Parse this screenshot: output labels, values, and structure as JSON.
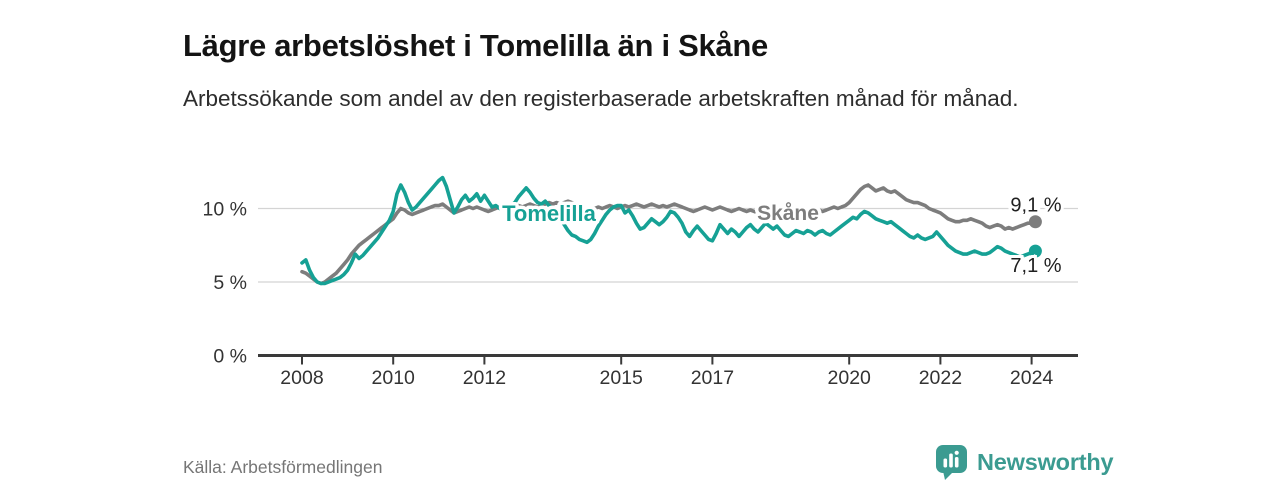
{
  "header": {
    "title": "Lägre arbetslöshet i Tomelilla än i Skåne",
    "subtitle": "Arbetssökande som andel av den registerbaserade arbetskraften månad för månad."
  },
  "chart_data": {
    "type": "line",
    "title": "Lägre arbetslöshet i Tomelilla än i Skåne",
    "unit": "%",
    "frequency": "monthly",
    "period_start": "2008-01",
    "period_end": "2024-02",
    "grid": "horizontal-only",
    "legend_position": "inline-labels-on-lines",
    "y_axis": {
      "tick_values": [
        0,
        5,
        10
      ],
      "tick_labels": [
        "0 %",
        "5 %",
        "10 %"
      ],
      "range": [
        0,
        13
      ]
    },
    "x_axis": {
      "tick_years": [
        2008,
        2010,
        2012,
        2015,
        2017,
        2020,
        2022,
        2024
      ],
      "tick_labels": [
        "2008",
        "2010",
        "2012",
        "2015",
        "2017",
        "2020",
        "2022",
        "2024"
      ]
    },
    "series": [
      {
        "name": "Skåne",
        "color": "#7d7d7d",
        "end_label": "9,1 %",
        "last_value": 9.1,
        "values": [
          5.7,
          5.6,
          5.4,
          5.2,
          5.0,
          4.9,
          5.0,
          5.2,
          5.4,
          5.6,
          5.9,
          6.2,
          6.5,
          6.9,
          7.2,
          7.5,
          7.7,
          7.9,
          8.1,
          8.3,
          8.5,
          8.7,
          8.9,
          9.1,
          9.3,
          9.7,
          10.0,
          9.9,
          9.7,
          9.6,
          9.7,
          9.8,
          9.9,
          10.0,
          10.1,
          10.2,
          10.2,
          10.3,
          10.1,
          9.9,
          9.7,
          9.8,
          9.9,
          10.0,
          10.1,
          10.0,
          10.1,
          10.0,
          9.9,
          9.8,
          9.9,
          10.0,
          10.1,
          10.0,
          9.9,
          10.0,
          10.1,
          10.2,
          10.1,
          10.2,
          10.3,
          10.2,
          10.1,
          10.2,
          10.3,
          10.4,
          10.3,
          10.4,
          10.3,
          10.4,
          10.5,
          10.4,
          10.3,
          10.1,
          9.9,
          9.8,
          9.9,
          10.0,
          10.1,
          10.0,
          10.1,
          10.2,
          10.1,
          10.0,
          10.1,
          10.2,
          10.1,
          10.2,
          10.3,
          10.2,
          10.1,
          10.2,
          10.3,
          10.2,
          10.1,
          10.2,
          10.1,
          10.2,
          10.3,
          10.2,
          10.1,
          10.0,
          9.9,
          9.8,
          9.9,
          10.0,
          10.1,
          10.0,
          9.9,
          10.0,
          10.1,
          10.0,
          9.9,
          9.8,
          9.9,
          10.0,
          9.9,
          9.8,
          9.9,
          9.8,
          9.7,
          9.8,
          9.9,
          9.8,
          9.7,
          9.6,
          9.7,
          9.8,
          9.9,
          10.0,
          10.1,
          10.0,
          9.9,
          9.8,
          9.9,
          10.0,
          9.9,
          9.8,
          9.9,
          10.0,
          10.1,
          10.0,
          10.1,
          10.2,
          10.4,
          10.7,
          11.0,
          11.3,
          11.5,
          11.6,
          11.4,
          11.2,
          11.3,
          11.4,
          11.2,
          11.1,
          11.2,
          11.0,
          10.8,
          10.6,
          10.5,
          10.4,
          10.4,
          10.3,
          10.2,
          10.0,
          9.9,
          9.8,
          9.7,
          9.5,
          9.3,
          9.2,
          9.1,
          9.1,
          9.2,
          9.2,
          9.3,
          9.2,
          9.1,
          9.0,
          8.8,
          8.7,
          8.8,
          8.9,
          8.8,
          8.6,
          8.7,
          8.6,
          8.7,
          8.8,
          8.9,
          9.0,
          9.0,
          9.1
        ]
      },
      {
        "name": "Tomelilla",
        "color": "#16a195",
        "end_label": "7,1 %",
        "last_value": 7.1,
        "values": [
          6.3,
          6.5,
          5.8,
          5.3,
          5.0,
          4.9,
          4.9,
          5.0,
          5.1,
          5.2,
          5.3,
          5.5,
          5.8,
          6.3,
          6.9,
          6.6,
          6.8,
          7.1,
          7.4,
          7.7,
          8.0,
          8.4,
          8.8,
          9.2,
          9.8,
          11.0,
          11.6,
          11.1,
          10.4,
          9.9,
          10.1,
          10.4,
          10.7,
          11.0,
          11.3,
          11.6,
          11.9,
          12.1,
          11.5,
          10.6,
          9.7,
          10.1,
          10.6,
          10.9,
          10.5,
          10.7,
          11.0,
          10.5,
          10.9,
          10.5,
          10.1,
          10.2,
          10.0,
          10.1,
          10.3,
          10.2,
          10.4,
          10.8,
          11.1,
          11.4,
          11.1,
          10.7,
          10.4,
          10.3,
          10.5,
          10.2,
          10.0,
          9.7,
          9.3,
          8.9,
          8.5,
          8.2,
          8.1,
          7.9,
          7.8,
          7.7,
          7.9,
          8.3,
          8.8,
          9.2,
          9.6,
          9.9,
          10.1,
          10.2,
          10.2,
          9.7,
          9.9,
          9.5,
          9.0,
          8.6,
          8.7,
          9.0,
          9.3,
          9.1,
          8.9,
          9.1,
          9.4,
          9.8,
          9.7,
          9.4,
          9.0,
          8.4,
          8.1,
          8.5,
          8.8,
          8.5,
          8.2,
          7.9,
          7.8,
          8.3,
          8.9,
          8.6,
          8.3,
          8.6,
          8.4,
          8.1,
          8.4,
          8.7,
          8.9,
          8.6,
          8.4,
          8.7,
          9.0,
          8.8,
          8.6,
          8.8,
          8.5,
          8.2,
          8.1,
          8.3,
          8.5,
          8.4,
          8.3,
          8.5,
          8.4,
          8.2,
          8.4,
          8.5,
          8.3,
          8.2,
          8.4,
          8.6,
          8.8,
          9.0,
          9.2,
          9.4,
          9.3,
          9.6,
          9.8,
          9.7,
          9.5,
          9.3,
          9.2,
          9.1,
          9.0,
          9.1,
          8.9,
          8.7,
          8.5,
          8.3,
          8.1,
          8.0,
          8.2,
          8.0,
          7.9,
          8.0,
          8.1,
          8.4,
          8.1,
          7.8,
          7.5,
          7.3,
          7.1,
          7.0,
          6.9,
          6.9,
          7.0,
          7.1,
          7.0,
          6.9,
          6.9,
          7.0,
          7.2,
          7.4,
          7.3,
          7.1,
          7.0,
          6.9,
          6.8,
          6.7,
          6.8,
          6.9,
          7.0,
          7.1
        ]
      }
    ],
    "colors": {
      "grid": "#d4d4d4",
      "axis": "#3a3a3a",
      "tick_text": "#333333",
      "value_label_text": "#1f1f1f"
    }
  },
  "footer": {
    "source": "Källa: Arbetsförmedlingen",
    "brand_name": "Newsworthy",
    "brand_color": "#3b9b91"
  }
}
